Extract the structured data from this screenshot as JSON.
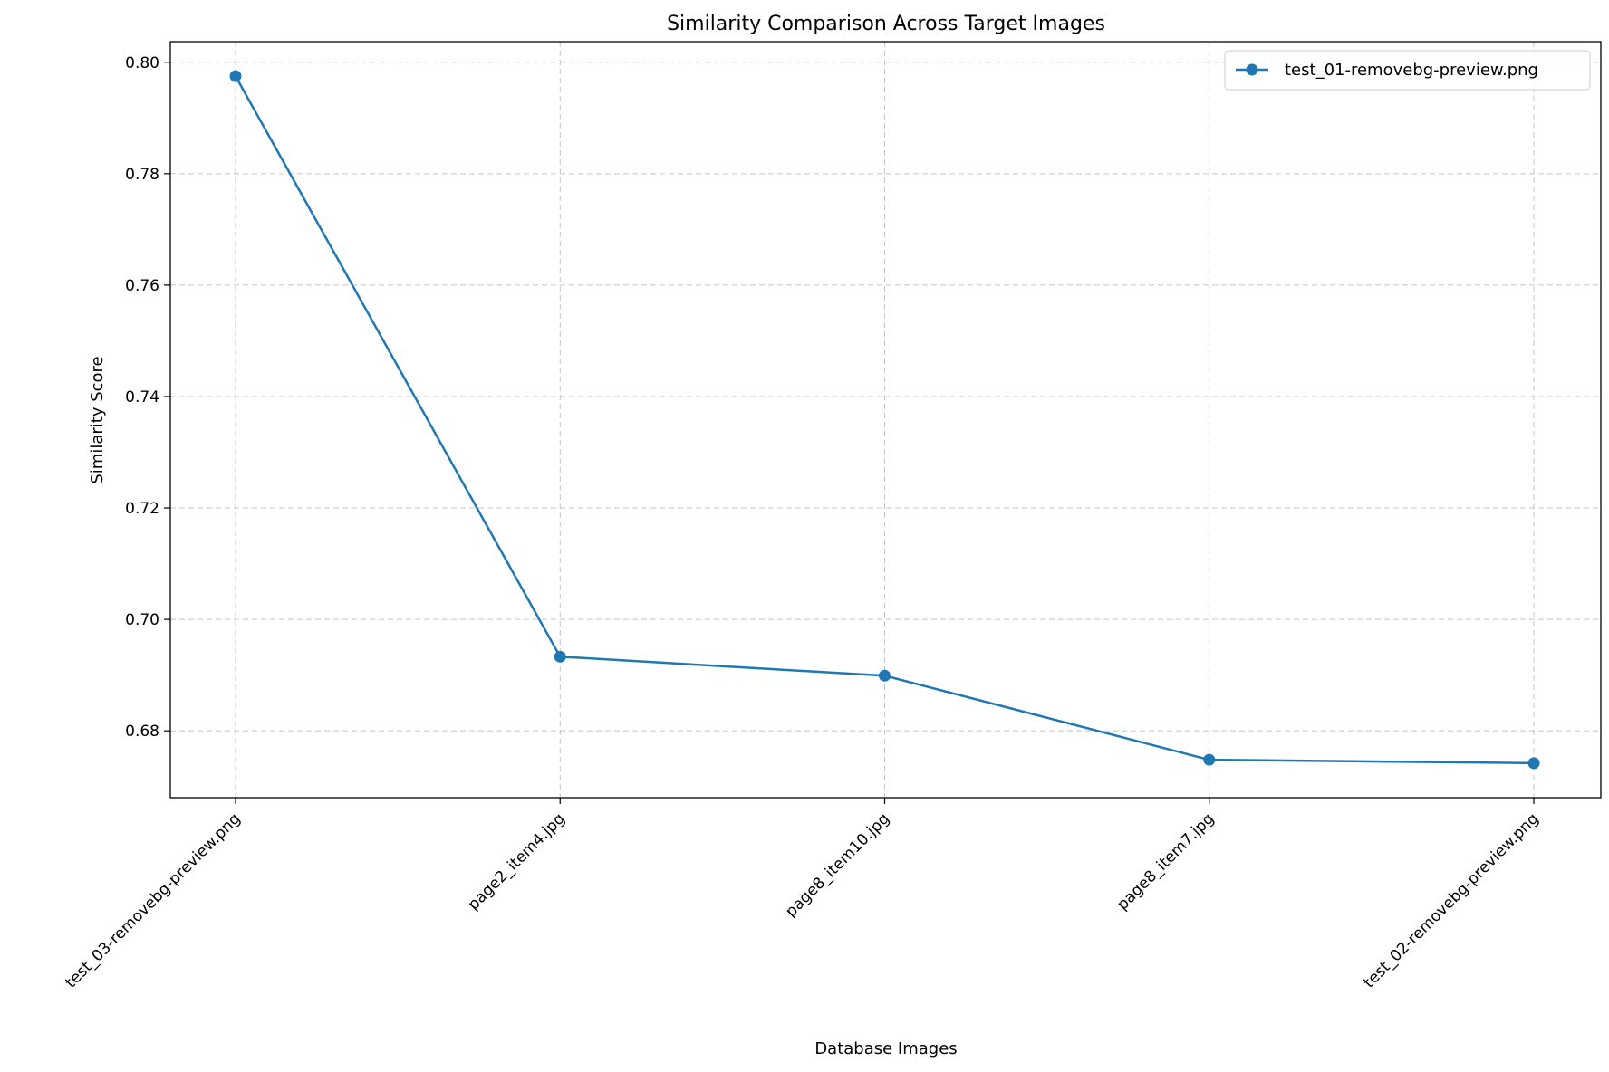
{
  "chart_data": {
    "type": "line",
    "title": "Similarity Comparison Across Target Images",
    "xlabel": "Database Images",
    "ylabel": "Similarity Score",
    "categories": [
      "test_03-removebg-preview.png",
      "page2_item4.jpg",
      "page8_item10.jpg",
      "page8_item7.jpg",
      "test_02-removebg-preview.png"
    ],
    "series": [
      {
        "name": "test_01-removebg-preview.png",
        "values": [
          0.7975,
          0.6933,
          0.6899,
          0.6748,
          0.6742
        ],
        "color": "#1f77b4"
      }
    ],
    "ylim": [
      0.668,
      0.8037
    ],
    "yticks": [
      0.68,
      0.7,
      0.72,
      0.74,
      0.76,
      0.78,
      0.8
    ],
    "ytick_labels": [
      "0.68",
      "0.70",
      "0.72",
      "0.74",
      "0.76",
      "0.78",
      "0.80"
    ],
    "grid": true,
    "legend_position": "top-right"
  }
}
